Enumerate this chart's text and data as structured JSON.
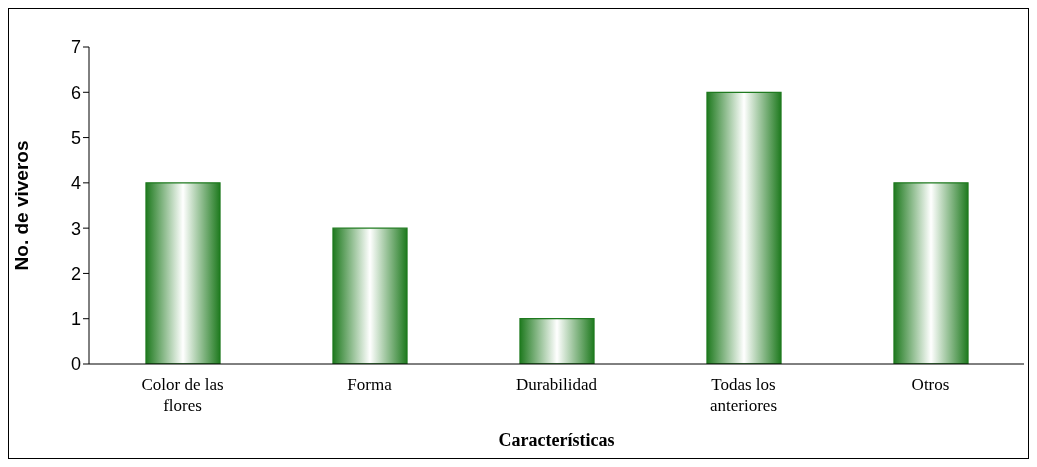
{
  "chart_data": {
    "type": "bar",
    "xlabel": "Características",
    "ylabel": "No. de viveros",
    "categories": [
      "Color de las flores",
      "Forma",
      "Durabilidad",
      "Todas los anteriores",
      "Otros"
    ],
    "values": [
      4,
      3,
      1,
      6,
      4
    ],
    "color": "#1f7a1f",
    "ylim": [
      0,
      7
    ],
    "yticks": [
      0,
      1,
      2,
      3,
      4,
      5,
      6,
      7
    ],
    "grid": false,
    "legend": false
  }
}
